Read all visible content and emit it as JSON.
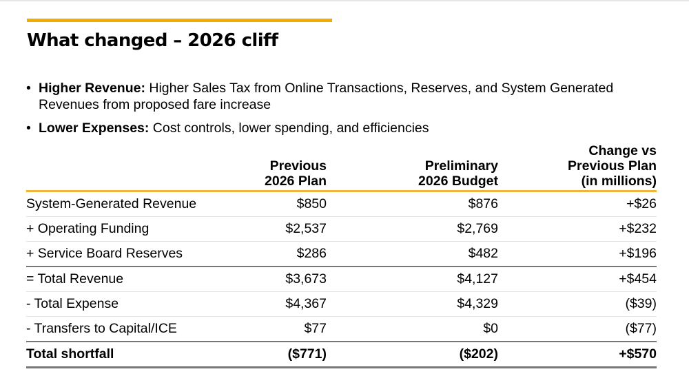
{
  "slide": {
    "title": "What changed – 2026 cliff",
    "accent_color": "#f0ad00",
    "bullets": [
      {
        "marker": "•",
        "lead": "Higher Revenue:",
        "text": " Higher Sales Tax from Online Transactions, Reserves, and System Generated Revenues from proposed fare increase"
      },
      {
        "marker": "•",
        "lead": "Lower Expenses:",
        "text": " Cost controls, lower spending, and efficiencies"
      }
    ]
  },
  "table": {
    "headers": [
      "",
      "Previous\n2026 Plan",
      "Preliminary\n2026 Budget",
      "Change vs\nPrevious Plan\n(in millions)"
    ],
    "header_lines": {
      "prev": [
        "Previous",
        "2026 Plan"
      ],
      "prelim": [
        "Preliminary",
        "2026 Budget"
      ],
      "change": [
        "Change vs",
        "Previous Plan",
        "(in millions)"
      ]
    },
    "rows": [
      {
        "label": "System-Generated Revenue",
        "previous": "$850",
        "preliminary": "$876",
        "change": "+$26"
      },
      {
        "label": "+ Operating Funding",
        "previous": "$2,537",
        "preliminary": "$2,769",
        "change": "+$232"
      },
      {
        "label": "+ Service Board Reserves",
        "previous": "$286",
        "preliminary": "$482",
        "change": "+$196"
      },
      {
        "label": "= Total Revenue",
        "previous": "$3,673",
        "preliminary": "$4,127",
        "change": "+$454"
      },
      {
        "label": "- Total Expense",
        "previous": "$4,367",
        "preliminary": "$4,329",
        "change": "($39)"
      },
      {
        "label": "- Transfers to Capital/ICE",
        "previous": "$77",
        "preliminary": "$0",
        "change": "($77)"
      },
      {
        "label": "Total shortfall",
        "previous": "($771)",
        "preliminary": "($202)",
        "change": "+$570"
      }
    ]
  }
}
